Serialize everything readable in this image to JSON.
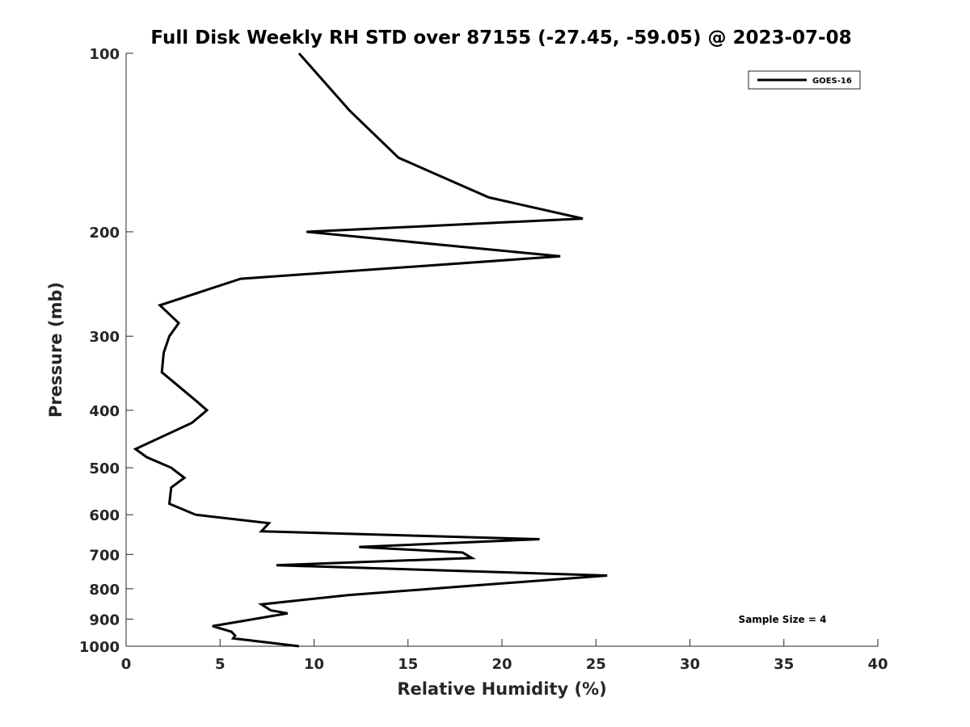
{
  "chart_data": {
    "type": "line",
    "title": "Full Disk Weekly RH STD over 87155 (-27.45, -59.05) @ 2023-07-08",
    "xlabel": "Relative Humidity (%)",
    "ylabel": "Pressure (mb)",
    "xlim": [
      0,
      40
    ],
    "ylim": [
      100,
      1000
    ],
    "yscale": "log",
    "y_reversed": true,
    "grid": false,
    "xticks": [
      0,
      5,
      10,
      15,
      20,
      25,
      30,
      35,
      40
    ],
    "xtick_labels": [
      "0",
      "5",
      "10",
      "15",
      "20",
      "25",
      "30",
      "35",
      "40"
    ],
    "yticks": [
      100,
      200,
      300,
      400,
      500,
      600,
      700,
      800,
      900,
      1000
    ],
    "ytick_labels": [
      "100",
      "200",
      "300",
      "400",
      "500",
      "600",
      "700",
      "800",
      "900",
      "1000"
    ],
    "legend": {
      "position": "top-right",
      "entries": [
        "GOES-16"
      ]
    },
    "annotation": "Sample Size = 4",
    "series": [
      {
        "name": "GOES-16",
        "color": "#000000",
        "points": [
          [
            9.2,
            100
          ],
          [
            11.9,
            125
          ],
          [
            14.5,
            150
          ],
          [
            19.3,
            175
          ],
          [
            24.3,
            190
          ],
          [
            9.6,
            200
          ],
          [
            23.1,
            220
          ],
          [
            6.1,
            240
          ],
          [
            1.8,
            266
          ],
          [
            2.8,
            285
          ],
          [
            2.3,
            300
          ],
          [
            2.0,
            320
          ],
          [
            1.9,
            345
          ],
          [
            3.7,
            385
          ],
          [
            4.3,
            400
          ],
          [
            3.5,
            420
          ],
          [
            0.5,
            465
          ],
          [
            1.1,
            480
          ],
          [
            2.4,
            500
          ],
          [
            3.1,
            520
          ],
          [
            2.4,
            540
          ],
          [
            2.3,
            575
          ],
          [
            3.7,
            600
          ],
          [
            7.6,
            620
          ],
          [
            7.2,
            640
          ],
          [
            22.0,
            660
          ],
          [
            12.4,
            680
          ],
          [
            17.9,
            695
          ],
          [
            18.4,
            710
          ],
          [
            8.0,
            730
          ],
          [
            25.6,
            760
          ],
          [
            18.5,
            790
          ],
          [
            11.8,
            820
          ],
          [
            7.2,
            850
          ],
          [
            7.7,
            870
          ],
          [
            8.6,
            880
          ],
          [
            4.6,
            925
          ],
          [
            5.6,
            945
          ],
          [
            5.8,
            960
          ],
          [
            5.7,
            970
          ],
          [
            9.2,
            1000
          ]
        ]
      }
    ]
  }
}
